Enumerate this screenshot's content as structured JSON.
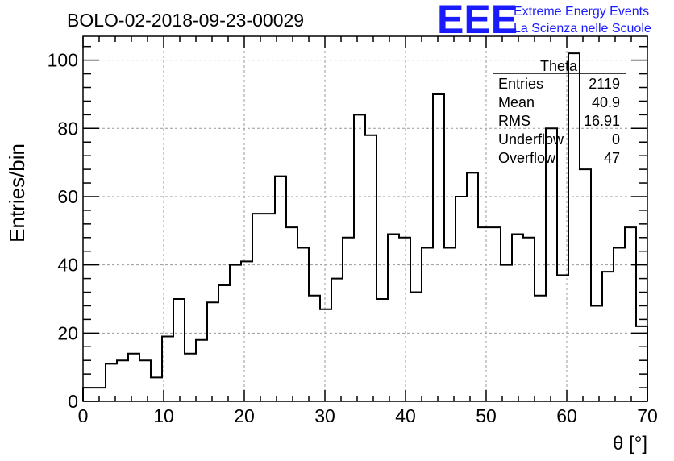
{
  "chart_data": {
    "type": "bar",
    "title": "BOLO-02-2018-09-23-00029",
    "xlabel": "θ [°]",
    "ylabel": "Entries/bin",
    "xlim": [
      0,
      70
    ],
    "ylim": [
      0,
      107
    ],
    "xticks": [
      0,
      10,
      20,
      30,
      40,
      50,
      60,
      70
    ],
    "yticks": [
      0,
      20,
      40,
      60,
      80,
      100
    ],
    "grid": true,
    "bin_width": 1.4,
    "values": [
      4,
      4,
      11,
      12,
      14,
      12,
      7,
      19,
      30,
      14,
      18,
      29,
      34,
      40,
      41,
      55,
      55,
      66,
      51,
      45,
      31,
      27,
      36,
      48,
      84,
      78,
      30,
      49,
      48,
      32,
      45,
      90,
      45,
      60,
      67,
      51,
      51,
      40,
      49,
      48,
      31,
      80,
      37,
      102,
      68,
      28,
      38,
      45,
      51,
      22
    ]
  },
  "stats_box": {
    "title": "Theta",
    "rows": [
      {
        "label": "Entries",
        "value": "2119"
      },
      {
        "label": "Mean",
        "value": "40.9"
      },
      {
        "label": "RMS",
        "value": "16.91"
      },
      {
        "label": "Underflow",
        "value": "0"
      },
      {
        "label": "Overflow",
        "value": "47"
      }
    ]
  },
  "logo": {
    "letters": "EEE",
    "line1": "Extreme Energy Events",
    "line2": "La Scienza nelle Scuole",
    "color": "#1a1aff"
  }
}
